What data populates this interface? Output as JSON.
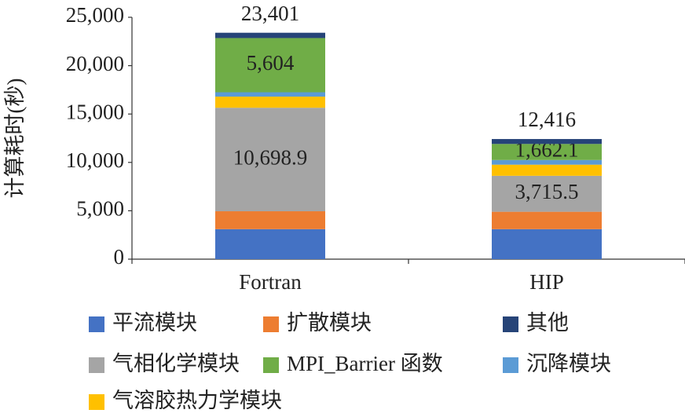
{
  "chart_data": {
    "type": "stacked_bar",
    "ylabel": "计算耗时(秒)",
    "categories": [
      "Fortran",
      "HIP"
    ],
    "series": [
      {
        "name": "平流模块",
        "color": "#4472c4",
        "values": [
          3100,
          3100
        ]
      },
      {
        "name": "扩散模块",
        "color": "#ed7d31",
        "values": [
          1850,
          1800
        ]
      },
      {
        "name": "气相化学模块",
        "color": "#a5a5a5",
        "values": [
          10698.9,
          3715.5
        ],
        "value_labels": [
          "10,698.9",
          "3,715.5"
        ]
      },
      {
        "name": "气溶胶热力学模块",
        "color": "#ffc000",
        "values": [
          1150,
          1150
        ]
      },
      {
        "name": "沉降模块",
        "color": "#5b9bd5",
        "values": [
          450,
          480
        ]
      },
      {
        "name": "MPI_Barrier 函数",
        "color": "#70ad47",
        "values": [
          5604,
          1662.1
        ],
        "value_labels": [
          "5,604",
          "1,662.1"
        ]
      },
      {
        "name": "其他",
        "color": "#264478",
        "values": [
          548,
          508
        ]
      }
    ],
    "totals": [
      23401,
      12416
    ],
    "total_labels": [
      "23,401",
      "12,416"
    ],
    "ylim": [
      0,
      25000
    ],
    "yticks": [
      0,
      {
        "value": 5000,
        "label": "5,000"
      },
      {
        "value": 10000,
        "label": "10,000"
      },
      {
        "value": 15000,
        "label": "15,000"
      },
      {
        "value": 20000,
        "label": "20,000"
      },
      {
        "value": 25000,
        "label": "25,000"
      }
    ],
    "grid": false
  }
}
